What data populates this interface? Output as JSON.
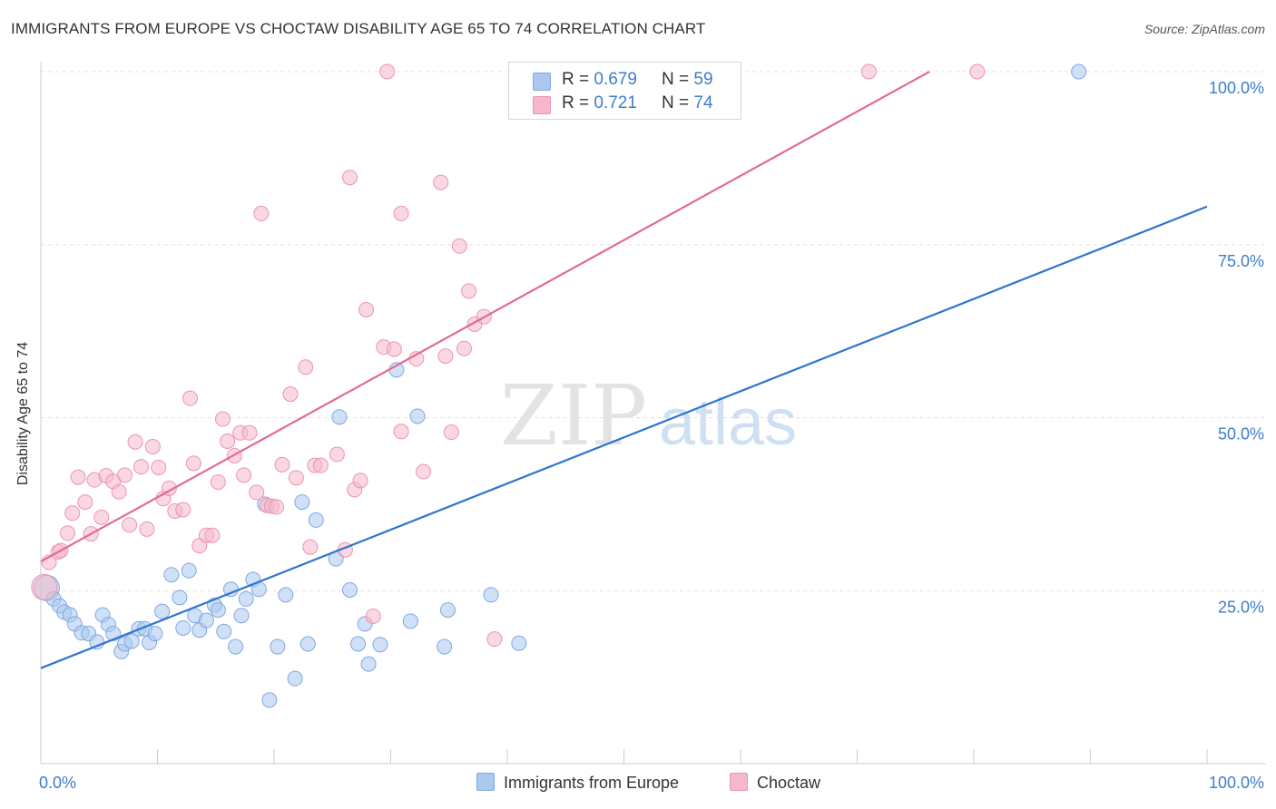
{
  "header": {
    "title": "IMMIGRANTS FROM EUROPE VS CHOCTAW DISABILITY AGE 65 TO 74 CORRELATION CHART",
    "source": "Source: ZipAtlas.com"
  },
  "watermark": {
    "zip": "ZIP",
    "atlas": "atlas"
  },
  "legend": {
    "rows": [
      {
        "r_label": "R = ",
        "r_value": "0.679",
        "n_label": "N = ",
        "n_value": "59",
        "color": "#aac8f0"
      },
      {
        "r_label": "R = ",
        "r_value": "0.721",
        "n_label": "N = ",
        "n_value": "74",
        "color": "#f5b8cb"
      }
    ]
  },
  "bottom_legend": [
    {
      "label": "Immigrants from Europe",
      "color": "#aac8f0"
    },
    {
      "label": "Choctaw",
      "color": "#f5b8cb"
    }
  ],
  "chart_data": {
    "type": "scatter",
    "title": "IMMIGRANTS FROM EUROPE VS CHOCTAW DISABILITY AGE 65 TO 74 CORRELATION CHART",
    "xlabel": "",
    "ylabel": "Disability Age 65 to 74",
    "xlim": [
      0,
      100
    ],
    "ylim": [
      0,
      100
    ],
    "x_tick_labels": [
      "0.0%",
      "100.0%"
    ],
    "y_tick_labels": [
      "25.0%",
      "50.0%",
      "75.0%",
      "100.0%"
    ],
    "y_tick_values": [
      25,
      50,
      75,
      100
    ],
    "grid": "horizontal dashed",
    "legend_position": "top-center",
    "series": [
      {
        "name": "Immigrants from Europe",
        "color": "#aac8f0",
        "edge": "#7fa8df",
        "trend_color": "#2f74d0",
        "trend": {
          "x": [
            0,
            100
          ],
          "y": [
            13.8,
            80.5
          ]
        },
        "points": [
          [
            0.5,
            25.4
          ],
          [
            1.1,
            23.8
          ],
          [
            1.6,
            22.8
          ],
          [
            2.0,
            21.9
          ],
          [
            2.5,
            21.5
          ],
          [
            2.9,
            20.2
          ],
          [
            3.5,
            18.9
          ],
          [
            4.1,
            18.8
          ],
          [
            4.8,
            17.6
          ],
          [
            5.3,
            21.5
          ],
          [
            5.8,
            20.1
          ],
          [
            6.2,
            18.8
          ],
          [
            6.9,
            16.2
          ],
          [
            7.2,
            17.3
          ],
          [
            7.8,
            17.7
          ],
          [
            8.4,
            19.5
          ],
          [
            8.9,
            19.5
          ],
          [
            9.3,
            17.5
          ],
          [
            9.8,
            18.8
          ],
          [
            10.4,
            22.0
          ],
          [
            11.2,
            27.3
          ],
          [
            11.9,
            24.0
          ],
          [
            12.2,
            19.6
          ],
          [
            12.7,
            27.9
          ],
          [
            13.2,
            21.4
          ],
          [
            13.6,
            19.3
          ],
          [
            14.2,
            20.7
          ],
          [
            14.9,
            22.9
          ],
          [
            15.2,
            22.2
          ],
          [
            15.7,
            19.1
          ],
          [
            16.3,
            25.2
          ],
          [
            16.7,
            16.9
          ],
          [
            17.2,
            21.4
          ],
          [
            17.6,
            23.8
          ],
          [
            18.2,
            26.6
          ],
          [
            18.7,
            25.2
          ],
          [
            19.2,
            37.5
          ],
          [
            19.6,
            9.2
          ],
          [
            20.3,
            16.9
          ],
          [
            21.0,
            24.4
          ],
          [
            21.8,
            12.3
          ],
          [
            22.4,
            37.8
          ],
          [
            22.9,
            17.3
          ],
          [
            23.6,
            35.2
          ],
          [
            25.3,
            29.6
          ],
          [
            25.6,
            50.1
          ],
          [
            26.5,
            25.1
          ],
          [
            27.2,
            17.3
          ],
          [
            28.1,
            14.4
          ],
          [
            27.8,
            20.2
          ],
          [
            29.1,
            17.2
          ],
          [
            30.5,
            56.9
          ],
          [
            31.7,
            20.6
          ],
          [
            32.3,
            50.2
          ],
          [
            34.9,
            22.2
          ],
          [
            34.6,
            16.9
          ],
          [
            38.6,
            24.4
          ],
          [
            41.0,
            17.4
          ],
          [
            89.0,
            100.0
          ]
        ]
      },
      {
        "name": "Choctaw",
        "color": "#f5b8cb",
        "edge": "#ec93b0",
        "trend_color": "#e26a92",
        "trend": {
          "x": [
            0,
            76.2
          ],
          "y": [
            29.2,
            100.0
          ]
        },
        "points": [
          [
            0.3,
            25.5
          ],
          [
            0.7,
            29.1
          ],
          [
            1.5,
            30.6
          ],
          [
            1.7,
            30.8
          ],
          [
            2.3,
            33.3
          ],
          [
            2.7,
            36.2
          ],
          [
            3.2,
            41.4
          ],
          [
            3.8,
            37.8
          ],
          [
            4.3,
            33.2
          ],
          [
            4.6,
            41.0
          ],
          [
            5.2,
            35.6
          ],
          [
            5.6,
            41.6
          ],
          [
            6.2,
            40.8
          ],
          [
            6.7,
            39.3
          ],
          [
            7.2,
            41.7
          ],
          [
            7.6,
            34.5
          ],
          [
            8.1,
            46.5
          ],
          [
            8.6,
            42.9
          ],
          [
            9.1,
            33.9
          ],
          [
            9.6,
            45.8
          ],
          [
            10.1,
            42.8
          ],
          [
            10.5,
            38.3
          ],
          [
            11.0,
            39.8
          ],
          [
            11.5,
            36.5
          ],
          [
            12.2,
            36.7
          ],
          [
            12.8,
            52.8
          ],
          [
            13.1,
            43.4
          ],
          [
            13.6,
            31.5
          ],
          [
            14.2,
            33.0
          ],
          [
            14.7,
            33.0
          ],
          [
            15.2,
            40.7
          ],
          [
            15.6,
            49.8
          ],
          [
            16.0,
            46.6
          ],
          [
            16.6,
            44.5
          ],
          [
            17.1,
            47.8
          ],
          [
            17.4,
            41.7
          ],
          [
            17.9,
            47.8
          ],
          [
            18.5,
            39.2
          ],
          [
            18.9,
            79.5
          ],
          [
            19.4,
            37.3
          ],
          [
            19.8,
            37.2
          ],
          [
            20.2,
            37.1
          ],
          [
            20.7,
            43.2
          ],
          [
            21.4,
            53.4
          ],
          [
            21.9,
            41.3
          ],
          [
            22.7,
            57.3
          ],
          [
            23.1,
            31.3
          ],
          [
            23.5,
            43.1
          ],
          [
            24.0,
            43.1
          ],
          [
            25.4,
            44.7
          ],
          [
            26.1,
            30.9
          ],
          [
            26.5,
            84.7
          ],
          [
            26.9,
            39.6
          ],
          [
            27.4,
            40.9
          ],
          [
            27.9,
            65.6
          ],
          [
            28.5,
            21.3
          ],
          [
            29.4,
            60.2
          ],
          [
            30.3,
            59.9
          ],
          [
            30.9,
            48.0
          ],
          [
            30.9,
            79.5
          ],
          [
            32.2,
            58.5
          ],
          [
            32.8,
            42.2
          ],
          [
            34.3,
            84.0
          ],
          [
            34.7,
            58.9
          ],
          [
            35.2,
            47.9
          ],
          [
            35.9,
            74.8
          ],
          [
            36.3,
            60.0
          ],
          [
            36.7,
            68.3
          ],
          [
            37.2,
            63.5
          ],
          [
            38.0,
            64.6
          ],
          [
            38.9,
            18.0
          ],
          [
            29.7,
            100.0
          ],
          [
            71.0,
            100.0
          ],
          [
            80.3,
            100.0
          ]
        ]
      }
    ]
  }
}
